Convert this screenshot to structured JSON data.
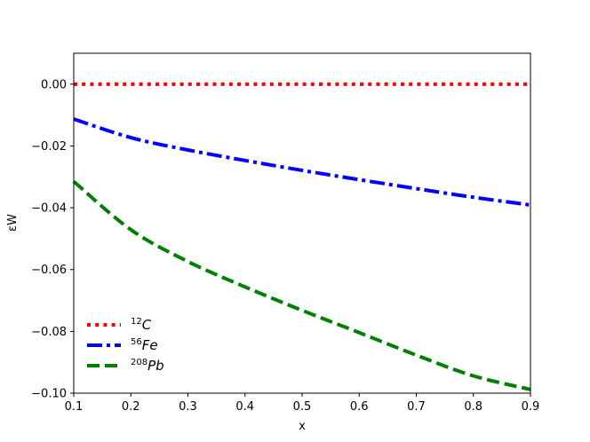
{
  "chart_data": {
    "type": "line",
    "xlabel": "x",
    "ylabel": "εW",
    "xlim": [
      0.1,
      0.9
    ],
    "ylim": [
      -0.1,
      0.01
    ],
    "xticks": [
      0.1,
      0.2,
      0.3,
      0.4,
      0.5,
      0.6,
      0.7,
      0.8,
      0.9
    ],
    "xtick_labels": [
      "0.1",
      "0.2",
      "0.3",
      "0.4",
      "0.5",
      "0.6",
      "0.7",
      "0.8",
      "0.9"
    ],
    "yticks": [
      0.0,
      -0.02,
      -0.04,
      -0.06,
      -0.08,
      -0.1
    ],
    "ytick_labels": [
      "0.00",
      "−0.02",
      "−0.04",
      "−0.06",
      "−0.08",
      "−0.10"
    ],
    "grid": false,
    "legend_position": "lower-left",
    "series": [
      {
        "name": "12C",
        "label_sup": "12",
        "label_main": "C",
        "color": "#ff0000",
        "style": "dotted",
        "x": [
          0.1,
          0.2,
          0.3,
          0.4,
          0.5,
          0.6,
          0.7,
          0.8,
          0.9
        ],
        "y": [
          0.0,
          0.0,
          0.0,
          0.0,
          0.0,
          0.0,
          0.0,
          0.0,
          0.0
        ]
      },
      {
        "name": "56Fe",
        "label_sup": "56",
        "label_main": "Fe",
        "color": "#0000ff",
        "style": "dashdot",
        "x": [
          0.1,
          0.2,
          0.3,
          0.4,
          0.5,
          0.6,
          0.7,
          0.8,
          0.9
        ],
        "y": [
          -0.0113,
          -0.0173,
          -0.0213,
          -0.0247,
          -0.0279,
          -0.0309,
          -0.0338,
          -0.0366,
          -0.0391
        ]
      },
      {
        "name": "208Pb",
        "label_sup": "208",
        "label_main": "Pb",
        "color": "#008000",
        "style": "dashed",
        "x": [
          0.1,
          0.2,
          0.3,
          0.4,
          0.5,
          0.6,
          0.7,
          0.8,
          0.9
        ],
        "y": [
          -0.0315,
          -0.0471,
          -0.0574,
          -0.0656,
          -0.0732,
          -0.0804,
          -0.0877,
          -0.0944,
          -0.0988
        ]
      }
    ]
  }
}
